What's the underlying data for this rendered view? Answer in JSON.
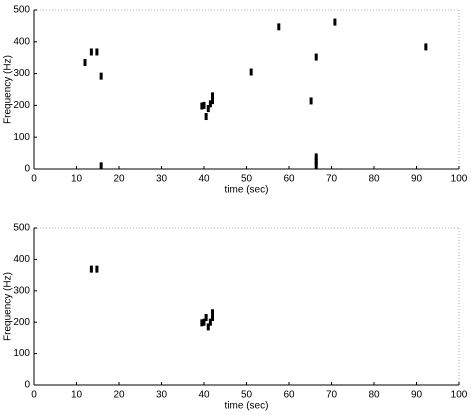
{
  "chart_data": [
    {
      "type": "scatter",
      "xlabel": "time (sec)",
      "ylabel": "Frequency (Hz)",
      "color": "#000000",
      "x": [
        12,
        13.5,
        14.8,
        15.8,
        15.8,
        39.5,
        40,
        40.5,
        41,
        41.5,
        42,
        42,
        51.1,
        57.6,
        65.2,
        66.4,
        66.4,
        66.4,
        66.4,
        70.8,
        92.2
      ],
      "y": [
        335,
        368,
        368,
        292,
        10,
        198,
        200,
        165,
        190,
        205,
        215,
        230,
        305,
        447,
        214,
        352,
        38,
        25,
        12,
        462,
        384
      ],
      "xlim": [
        0,
        100
      ],
      "ylim": [
        0,
        500
      ],
      "xticks": [
        0,
        10,
        20,
        30,
        40,
        50,
        60,
        70,
        80,
        90,
        100
      ],
      "yticks": [
        0,
        100,
        200,
        300,
        400,
        500
      ]
    },
    {
      "type": "scatter",
      "xlabel": "time (sec)",
      "ylabel": "Frequency (Hz)",
      "color": "#000000",
      "x": [
        13.5,
        14.8,
        39.5,
        40,
        40.5,
        41,
        41.5,
        42,
        42
      ],
      "y": [
        369,
        369,
        198,
        200,
        215,
        185,
        200,
        215,
        230
      ],
      "xlim": [
        0,
        100
      ],
      "ylim": [
        0,
        500
      ],
      "xticks": [
        0,
        10,
        20,
        30,
        40,
        50,
        60,
        70,
        80,
        90,
        100
      ],
      "yticks": [
        0,
        100,
        200,
        300,
        400,
        500
      ]
    }
  ]
}
